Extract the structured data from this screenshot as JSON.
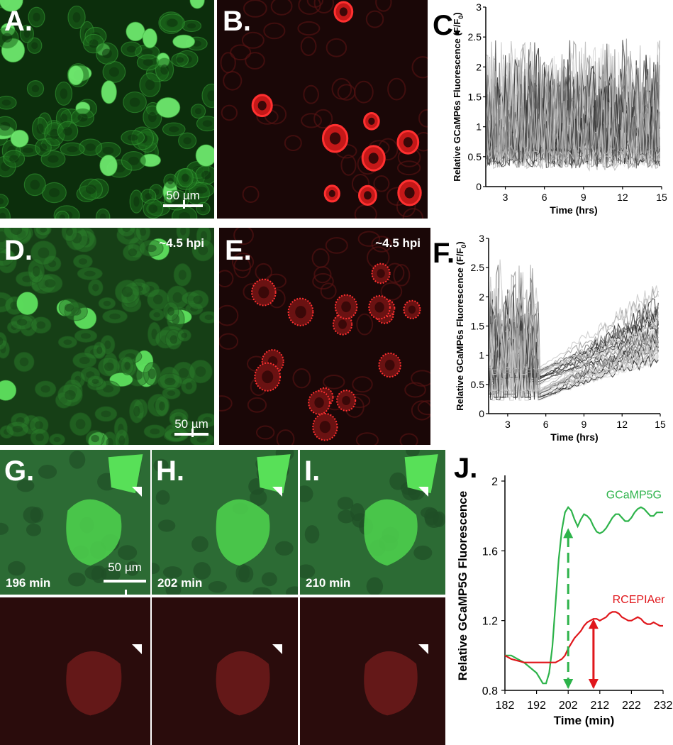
{
  "panels": {
    "A": {
      "label": "A.",
      "scale_bar": "50 µm"
    },
    "B": {
      "label": "B."
    },
    "C": {
      "label": "C."
    },
    "D": {
      "label": "D.",
      "timepoint": "~4.5 hpi",
      "scale_bar": "50 µm"
    },
    "E": {
      "label": "E.",
      "timepoint": "~4.5 hpi"
    },
    "F": {
      "label": "F."
    },
    "G": {
      "label": "G.",
      "time": "196 min",
      "scale_bar": "50 µm"
    },
    "H": {
      "label": "H.",
      "time": "202 min"
    },
    "I": {
      "label": "I.",
      "time": "210 min"
    },
    "J": {
      "label": "J."
    }
  },
  "colors": {
    "green_cells": "#2fa82f",
    "red_cells": "#e02020",
    "gcamp5g": "#2db34a",
    "rcepiaer": "#e0161b"
  },
  "chart_data": [
    {
      "id": "C",
      "type": "line",
      "ylabel_main": "Relative GCaMP6s Fluorescence",
      "ylabel_unit": "(F/F",
      "ylabel_sub": "0",
      "ylabel_close": ")",
      "xlabel": "Time (hrs)",
      "xlim": [
        1.5,
        15
      ],
      "ylim": [
        0,
        3
      ],
      "xticks": [
        3,
        6,
        9,
        12,
        15
      ],
      "yticks": [
        0,
        0.5,
        1,
        1.5,
        2,
        2.5,
        3
      ],
      "ytick_labels": [
        "0",
        "0.5",
        "1",
        "1.5",
        "2",
        "2.5",
        "3"
      ],
      "series_note_count": 40,
      "range_low": [
        0.25,
        0.6
      ],
      "range_high": [
        1.2,
        2.6
      ]
    },
    {
      "id": "F",
      "type": "line",
      "ylabel_main": "Relative GCaMP6s Fluorescence",
      "ylabel_unit": "(F/F",
      "ylabel_sub": "0",
      "ylabel_close": ")",
      "xlabel": "Time (hrs)",
      "xlim": [
        1.5,
        15
      ],
      "ylim": [
        0,
        3
      ],
      "xticks": [
        3,
        6,
        9,
        12,
        15
      ],
      "yticks": [
        0,
        0.5,
        1,
        1.5,
        2,
        2.5,
        3
      ],
      "ytick_labels": [
        "0",
        "0.5",
        "1",
        "1.5",
        "2",
        "2.5",
        "3"
      ],
      "series_note_count": 40,
      "range_low": [
        0.2,
        0.8
      ],
      "range_high": [
        1.0,
        2.7
      ]
    },
    {
      "id": "J",
      "type": "line",
      "ylabel": "Relative GCaMP5G Fluorescence",
      "xlabel": "Time (min)",
      "xlim": [
        182,
        232
      ],
      "ylim": [
        0.8,
        2.0
      ],
      "xticks": [
        182,
        192,
        202,
        212,
        222,
        232
      ],
      "yticks": [
        0.8,
        1.2,
        1.6,
        2.0
      ],
      "ytick_labels": [
        "0.8",
        "1.2",
        "1.6",
        "2"
      ],
      "series": [
        {
          "name": "GCaMP5G",
          "color": "#2db34a",
          "x": [
            182,
            184,
            186,
            188,
            190,
            192,
            193,
            194,
            195,
            196,
            197,
            198,
            199,
            200,
            201,
            202,
            203,
            204,
            205,
            206,
            207,
            208,
            209,
            210,
            211,
            212,
            213,
            214,
            215,
            216,
            217,
            218,
            219,
            220,
            221,
            222,
            223,
            224,
            225,
            226,
            227,
            228,
            229,
            230,
            231,
            232
          ],
          "y": [
            1.0,
            1.0,
            0.98,
            0.96,
            0.93,
            0.9,
            0.87,
            0.84,
            0.84,
            0.9,
            1.05,
            1.3,
            1.55,
            1.72,
            1.82,
            1.85,
            1.83,
            1.78,
            1.74,
            1.78,
            1.81,
            1.8,
            1.78,
            1.74,
            1.71,
            1.7,
            1.71,
            1.73,
            1.76,
            1.79,
            1.81,
            1.81,
            1.79,
            1.77,
            1.77,
            1.79,
            1.82,
            1.84,
            1.85,
            1.84,
            1.82,
            1.8,
            1.8,
            1.82,
            1.82,
            1.82
          ]
        },
        {
          "name": "RCEPIAer",
          "color": "#e0161b",
          "x": [
            182,
            184,
            186,
            188,
            190,
            192,
            194,
            196,
            198,
            200,
            201,
            202,
            203,
            204,
            205,
            206,
            207,
            208,
            209,
            210,
            211,
            212,
            213,
            214,
            215,
            216,
            217,
            218,
            219,
            220,
            221,
            222,
            223,
            224,
            225,
            226,
            227,
            228,
            229,
            230,
            231,
            232
          ],
          "y": [
            1.0,
            0.98,
            0.97,
            0.96,
            0.96,
            0.96,
            0.96,
            0.96,
            0.96,
            0.98,
            1.0,
            1.04,
            1.07,
            1.1,
            1.12,
            1.14,
            1.17,
            1.19,
            1.2,
            1.21,
            1.21,
            1.2,
            1.21,
            1.22,
            1.24,
            1.25,
            1.25,
            1.24,
            1.22,
            1.21,
            1.2,
            1.2,
            1.21,
            1.22,
            1.21,
            1.19,
            1.18,
            1.18,
            1.19,
            1.18,
            1.17,
            1.17
          ]
        }
      ],
      "annotations": [
        {
          "type": "dashed-arrow",
          "color": "#2db34a",
          "x": 202,
          "y_from": 0.8,
          "y_to": 1.73
        },
        {
          "type": "arrow",
          "color": "#e0161b",
          "x": 210,
          "y_from": 0.8,
          "y_to": 1.21
        }
      ]
    }
  ]
}
